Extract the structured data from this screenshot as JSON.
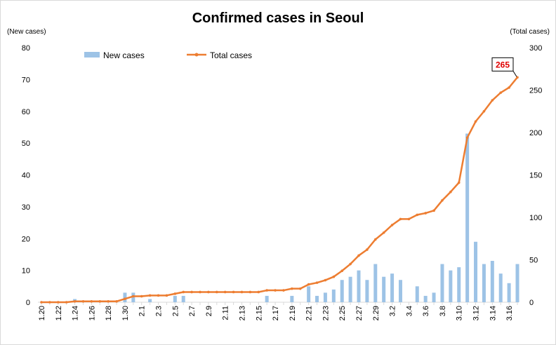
{
  "chart_data": {
    "type": "bar+line",
    "title": "Confirmed cases in Seoul",
    "y_left_label": "(New cases)",
    "y_right_label": "(Total cases)",
    "y_left_range": [
      0,
      80
    ],
    "y_left_ticks": [
      0,
      10,
      20,
      30,
      40,
      50,
      60,
      70,
      80
    ],
    "y_right_range": [
      0,
      300
    ],
    "y_right_ticks": [
      0,
      50,
      100,
      150,
      200,
      250,
      300
    ],
    "grid": false,
    "legend_position": "top-left",
    "x": [
      "1.20",
      "1.21",
      "1.22",
      "1.23",
      "1.24",
      "1.25",
      "1.26",
      "1.27",
      "1.28",
      "1.29",
      "1.30",
      "1.31",
      "2.1",
      "2.2",
      "2.3",
      "2.4",
      "2.5",
      "2.6",
      "2.7",
      "2.8",
      "2.9",
      "2.10",
      "2.11",
      "2.12",
      "2.13",
      "2.14",
      "2.15",
      "2.16",
      "2.17",
      "2.18",
      "2.19",
      "2.20",
      "2.21",
      "2.22",
      "2.23",
      "2.24",
      "2.25",
      "2.26",
      "2.27",
      "2.28",
      "2.29",
      "3.1",
      "3.2",
      "3.3",
      "3.4",
      "3.5",
      "3.6",
      "3.7",
      "3.8",
      "3.9",
      "3.10",
      "3.11",
      "3.12",
      "3.13",
      "3.14",
      "3.15",
      "3.16",
      "3.17"
    ],
    "x_tick_labels": [
      "1.20",
      "1.22",
      "1.24",
      "1.26",
      "1.28",
      "1.30",
      "2.1",
      "2.3",
      "2.5",
      "2.7",
      "2.9",
      "2.11",
      "2.13",
      "2.15",
      "2.17",
      "2.19",
      "2.21",
      "2.23",
      "2.25",
      "2.27",
      "2.29",
      "3.2",
      "3.4",
      "3.6",
      "3.8",
      "3.10",
      "3.12",
      "3.14",
      "3.16"
    ],
    "series": [
      {
        "name": "New cases",
        "type": "bar",
        "axis": "left",
        "color": "#9dc3e6",
        "values": [
          0,
          0,
          0,
          0,
          1,
          0,
          0,
          0,
          0,
          0,
          3,
          3,
          0,
          1,
          0,
          0,
          2,
          2,
          0,
          0,
          0,
          0,
          0,
          0,
          0,
          0,
          0,
          2,
          0,
          0,
          2,
          0,
          5,
          2,
          3,
          4,
          7,
          8,
          10,
          7,
          12,
          8,
          9,
          7,
          0,
          5,
          2,
          3,
          12,
          10,
          11,
          53,
          19,
          12,
          13,
          9,
          6,
          12
        ]
      },
      {
        "name": "Total cases",
        "type": "line",
        "axis": "right",
        "color": "#ed7d31",
        "values": [
          0,
          0,
          0,
          0,
          1,
          1,
          1,
          1,
          1,
          1,
          4,
          7,
          7,
          8,
          8,
          8,
          10,
          12,
          12,
          12,
          12,
          12,
          12,
          12,
          12,
          12,
          12,
          14,
          14,
          14,
          16,
          16,
          21,
          23,
          26,
          30,
          37,
          45,
          55,
          62,
          74,
          82,
          91,
          98,
          98,
          103,
          105,
          108,
          120,
          130,
          141,
          194,
          213,
          225,
          238,
          247,
          253,
          265
        ]
      }
    ],
    "annotation": {
      "label": "265",
      "point_index": 57
    }
  }
}
